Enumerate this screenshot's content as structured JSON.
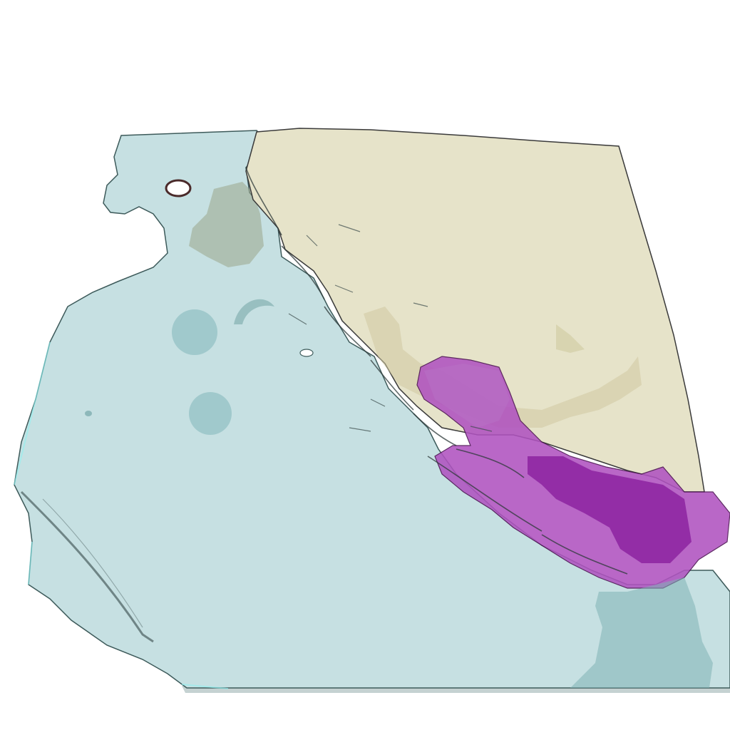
{
  "scene": {
    "type": "3d-rendered-volume-segmentation",
    "background_color": "#ffffff",
    "regions": [
      {
        "name": "cyan-tissue-volume",
        "color": "#bfe0e2",
        "edge_color": "#2f4f4f"
      },
      {
        "name": "cream-tissue-volume",
        "color": "#e7e3c8",
        "edge_color": "#3a3a3a"
      },
      {
        "name": "magenta-tissue-volume",
        "color": "#a23db0",
        "edge_color": "#4a1050"
      }
    ],
    "holes": [
      {
        "name": "circular-hole-1"
      },
      {
        "name": "circular-hole-2"
      },
      {
        "name": "crescent-hole"
      },
      {
        "name": "small-dark-ring"
      }
    ]
  }
}
